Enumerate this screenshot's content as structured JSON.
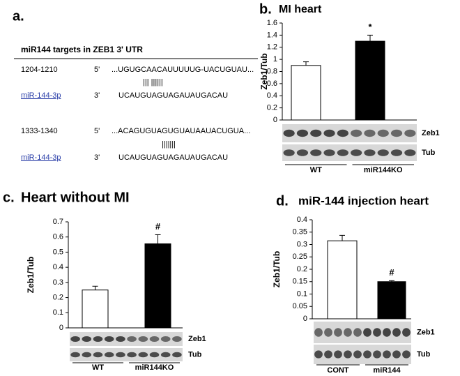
{
  "panel_a": {
    "label": "a.",
    "heading": "miR144 targets in  ZEB1 3' UTR",
    "sites": [
      {
        "position": "1204-1210",
        "five": "5'",
        "target": "...UGUGCAACAUUUUUG-UACUGUAU...",
        "pairing": "|||  ||||||",
        "mirna": "miR-144-3p",
        "three": "3'",
        "mirna_seq": "UCAUGUAGUAGAUAUGACAU"
      },
      {
        "position": "1333-1340",
        "five": "5'",
        "target": "...ACAGUGUAGUGUAUAAUACUGUA...",
        "pairing": "|||||||",
        "mirna": "miR-144-3p",
        "three": "3'",
        "mirna_seq": "UCAUGUAGUAGAUAUGACAU"
      }
    ]
  },
  "chart_data": [
    {
      "type": "bar",
      "panel": "b.",
      "title": "MI heart",
      "ylabel": "Zeb1/Tub",
      "categories": [
        "WT",
        "miR144KO"
      ],
      "values": [
        0.9,
        1.3
      ],
      "errors": [
        0.06,
        0.1
      ],
      "colors": [
        "#ffffff",
        "#000000"
      ],
      "ylim": [
        0,
        1.6
      ],
      "yticks": [
        0,
        0.2,
        0.4,
        0.6,
        0.8,
        1,
        1.2,
        1.4,
        1.6
      ],
      "annotations": [
        {
          "text": "*",
          "category": "miR144KO"
        }
      ],
      "blot_labels": [
        "Zeb1",
        "Tub"
      ]
    },
    {
      "type": "bar",
      "panel": "c.",
      "title": "Heart without MI",
      "ylabel": "Zeb1/Tub",
      "categories": [
        "WT",
        "miR144KO"
      ],
      "values": [
        0.25,
        0.555
      ],
      "errors": [
        0.025,
        0.06
      ],
      "colors": [
        "#ffffff",
        "#000000"
      ],
      "ylim": [
        0,
        0.7
      ],
      "yticks": [
        0,
        0.1,
        0.2,
        0.3,
        0.4,
        0.5,
        0.6,
        0.7
      ],
      "annotations": [
        {
          "text": "#",
          "category": "miR144KO"
        }
      ],
      "blot_labels": [
        "Zeb1",
        "Tub"
      ]
    },
    {
      "type": "bar",
      "panel": "d.",
      "title": "miR-144 injection heart",
      "ylabel": "Zeb1/Tub",
      "categories": [
        "CONT",
        "miR144"
      ],
      "values": [
        0.315,
        0.15
      ],
      "errors": [
        0.022,
        0.004
      ],
      "colors": [
        "#ffffff",
        "#000000"
      ],
      "ylim": [
        0,
        0.4
      ],
      "yticks": [
        0,
        0.05,
        0.1,
        0.15,
        0.2,
        0.25,
        0.3,
        0.35,
        0.4
      ],
      "annotations": [
        {
          "text": "#",
          "category": "miR144"
        }
      ],
      "blot_labels": [
        "Zeb1",
        "Tub"
      ]
    }
  ]
}
